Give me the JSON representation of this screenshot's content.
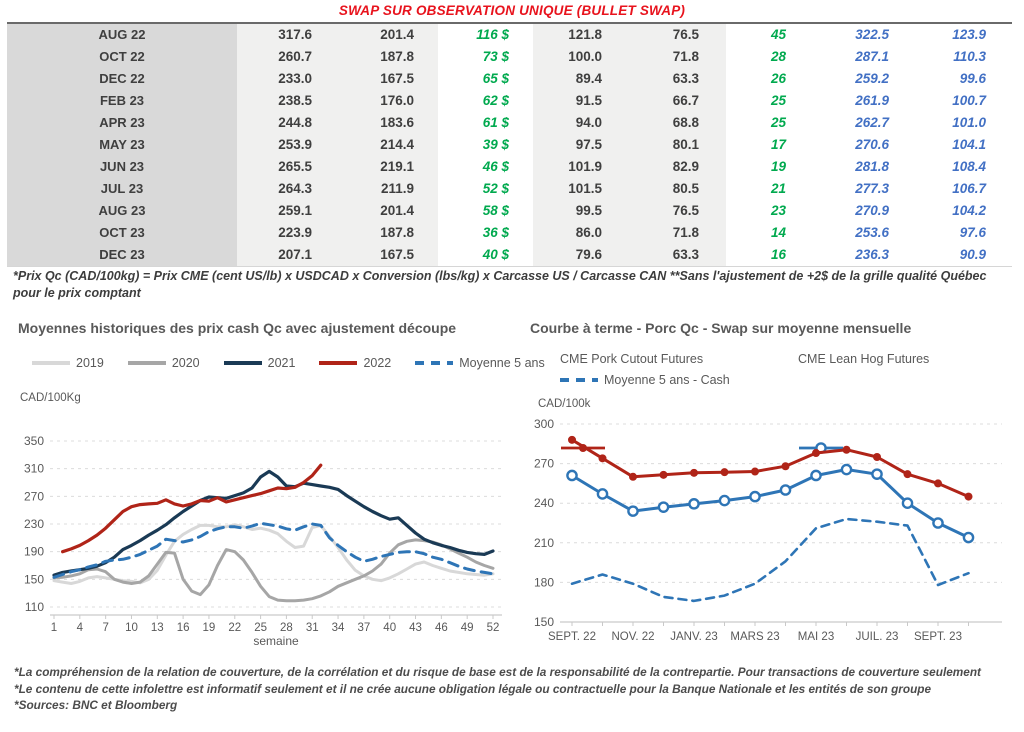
{
  "title": "SWAP SUR OBSERVATION UNIQUE (BULLET SWAP)",
  "table": {
    "rows": [
      [
        "AUG 22",
        "317.6",
        "201.4",
        "116 $",
        "121.8",
        "76.5",
        "45",
        "322.5",
        "123.9"
      ],
      [
        "OCT 22",
        "260.7",
        "187.8",
        "73 $",
        "100.0",
        "71.8",
        "28",
        "287.1",
        "110.3"
      ],
      [
        "DEC 22",
        "233.0",
        "167.5",
        "65 $",
        "89.4",
        "63.3",
        "26",
        "259.2",
        "99.6"
      ],
      [
        "FEB 23",
        "238.5",
        "176.0",
        "62 $",
        "91.5",
        "66.7",
        "25",
        "261.9",
        "100.7"
      ],
      [
        "APR 23",
        "244.8",
        "183.6",
        "61 $",
        "94.0",
        "68.8",
        "25",
        "262.7",
        "101.0"
      ],
      [
        "MAY 23",
        "253.9",
        "214.4",
        "39 $",
        "97.5",
        "80.1",
        "17",
        "270.6",
        "104.1"
      ],
      [
        "JUN 23",
        "265.5",
        "219.1",
        "46 $",
        "101.9",
        "82.9",
        "19",
        "281.8",
        "108.4"
      ],
      [
        "JUL 23",
        "264.3",
        "211.9",
        "52 $",
        "101.5",
        "80.5",
        "21",
        "277.3",
        "106.7"
      ],
      [
        "AUG 23",
        "259.1",
        "201.4",
        "58 $",
        "99.5",
        "76.5",
        "23",
        "270.9",
        "104.2"
      ],
      [
        "OCT 23",
        "223.9",
        "187.8",
        "36 $",
        "86.0",
        "71.8",
        "14",
        "253.6",
        "97.6"
      ],
      [
        "DEC 23",
        "207.1",
        "167.5",
        "40 $",
        "79.6",
        "63.3",
        "16",
        "236.3",
        "90.9"
      ]
    ]
  },
  "table_footnote": "*Prix Qc (CAD/100kg) = Prix CME (cent US/lb) x USDCAD x Conversion (lbs/kg) x Carcasse US / Carcasse CAN **Sans l'ajustement de +2$ de la grille qualité Québec pour le prix comptant",
  "chart_data": [
    {
      "type": "line",
      "title": "Moyennes historiques des prix cash Qc avec ajustement découpe",
      "ylabel": "CAD/100Kg",
      "xlabel": "semaine",
      "ylim": [
        110,
        350
      ],
      "yticks": [
        110,
        150,
        190,
        230,
        270,
        310,
        350
      ],
      "xlim": [
        1,
        52
      ],
      "xticks": [
        1,
        4,
        7,
        10,
        13,
        16,
        19,
        22,
        25,
        28,
        31,
        34,
        37,
        40,
        43,
        46,
        49,
        52
      ],
      "grid": true,
      "legend_position": "top",
      "series": [
        {
          "name": "2019",
          "color": "#d8d8d8",
          "style": "solid",
          "x_start": 1,
          "values": [
            148,
            146,
            144,
            147,
            152,
            154,
            152,
            150,
            148,
            147,
            145,
            150,
            163,
            185,
            205,
            215,
            222,
            228,
            228,
            226,
            226,
            229,
            226,
            222,
            224,
            221,
            216,
            205,
            196,
            198,
            225,
            228,
            212,
            196,
            178,
            163,
            155,
            150,
            148,
            152,
            158,
            165,
            172,
            175,
            170,
            166,
            162,
            160,
            158,
            157,
            156,
            158
          ]
        },
        {
          "name": "2020",
          "color": "#a6a6a6",
          "style": "solid",
          "x_start": 1,
          "values": [
            152,
            153,
            155,
            158,
            164,
            165,
            161,
            150,
            146,
            144,
            146,
            155,
            172,
            189,
            188,
            150,
            133,
            128,
            142,
            170,
            193,
            190,
            178,
            160,
            140,
            125,
            120,
            119,
            119,
            120,
            122,
            126,
            132,
            140,
            145,
            150,
            155,
            162,
            172,
            188,
            200,
            205,
            207,
            206,
            204,
            200,
            194,
            188,
            182,
            175,
            170,
            166
          ]
        },
        {
          "name": "2021",
          "color": "#1a3a55",
          "style": "solid",
          "x_start": 1,
          "values": [
            156,
            160,
            162,
            164,
            166,
            169,
            174,
            182,
            193,
            199,
            206,
            214,
            221,
            229,
            239,
            248,
            256,
            264,
            269,
            268,
            267,
            271,
            275,
            282,
            298,
            306,
            298,
            285,
            284,
            289,
            287,
            285,
            283,
            280,
            271,
            263,
            255,
            248,
            242,
            237,
            239,
            228,
            217,
            208,
            203,
            199,
            196,
            192,
            189,
            187,
            186,
            191
          ]
        },
        {
          "name": "2022",
          "color": "#b02418",
          "style": "solid",
          "x_start": 2,
          "values": [
            190,
            194,
            199,
            206,
            214,
            224,
            236,
            248,
            255,
            258,
            259,
            260,
            265,
            259,
            256,
            259,
            264,
            263,
            268,
            262,
            265,
            268,
            271,
            274,
            278,
            282,
            281,
            283,
            290,
            300,
            315
          ]
        },
        {
          "name": "Moyenne 5 ans",
          "color": "#2e75b6",
          "style": "dashed",
          "x_start": 1,
          "values": [
            153,
            157,
            161,
            164,
            168,
            171,
            176,
            178,
            179,
            182,
            186,
            192,
            198,
            208,
            206,
            204,
            207,
            212,
            219,
            223,
            226,
            226,
            224,
            227,
            231,
            229,
            227,
            223,
            221,
            226,
            230,
            228,
            210,
            199,
            190,
            182,
            176,
            179,
            183,
            186,
            189,
            190,
            190,
            187,
            182,
            179,
            174,
            169,
            165,
            162,
            160,
            158
          ]
        }
      ]
    },
    {
      "type": "line",
      "title": "Courbe à terme - Porc Qc - Swap sur moyenne mensuelle",
      "ylabel": "CAD/100k",
      "xlabel": "",
      "ylim": [
        150,
        300
      ],
      "yticks": [
        150,
        180,
        210,
        240,
        270,
        300
      ],
      "x_tick_labels": [
        "SEPT. 22",
        "NOV. 22",
        "JANV. 23",
        "MARS 23",
        "MAI 23",
        "JUIL. 23",
        "SEPT. 23"
      ],
      "x_tick_every": 2,
      "n_points": 14,
      "grid": true,
      "legend_position": "top",
      "series": [
        {
          "name": "CME Pork Cutout Futures",
          "color": "#b02418",
          "style": "solid",
          "marker": "filled",
          "values": [
            288,
            274,
            260,
            261.5,
            263,
            263.5,
            264,
            268,
            278,
            280.5,
            275,
            262,
            255,
            245
          ]
        },
        {
          "name": "CME Lean Hog Futures",
          "color": "#2e75b6",
          "style": "solid",
          "marker": "open",
          "values": [
            261,
            247,
            234,
            237,
            239.5,
            242,
            245,
            250,
            261,
            265.5,
            262,
            240,
            225,
            214
          ]
        },
        {
          "name": "Moyenne 5 ans - Cash",
          "color": "#2e75b6",
          "style": "dashed",
          "values": [
            179,
            186,
            179,
            169,
            166,
            170,
            179,
            196,
            221,
            228,
            226,
            223,
            178,
            187
          ]
        }
      ]
    }
  ],
  "footer": {
    "lines": [
      "*La compréhension de la relation de couverture, de la corrélation et du risque de base est de la responsabilité de la contrepartie. Pour transactions de couverture seulement",
      "*Le contenu de cette infolettre est informatif seulement et il ne crée aucune obligation légale ou contractuelle pour la Banque Nationale et les entités de son groupe",
      "*Sources: BNC et Bloomberg"
    ]
  }
}
